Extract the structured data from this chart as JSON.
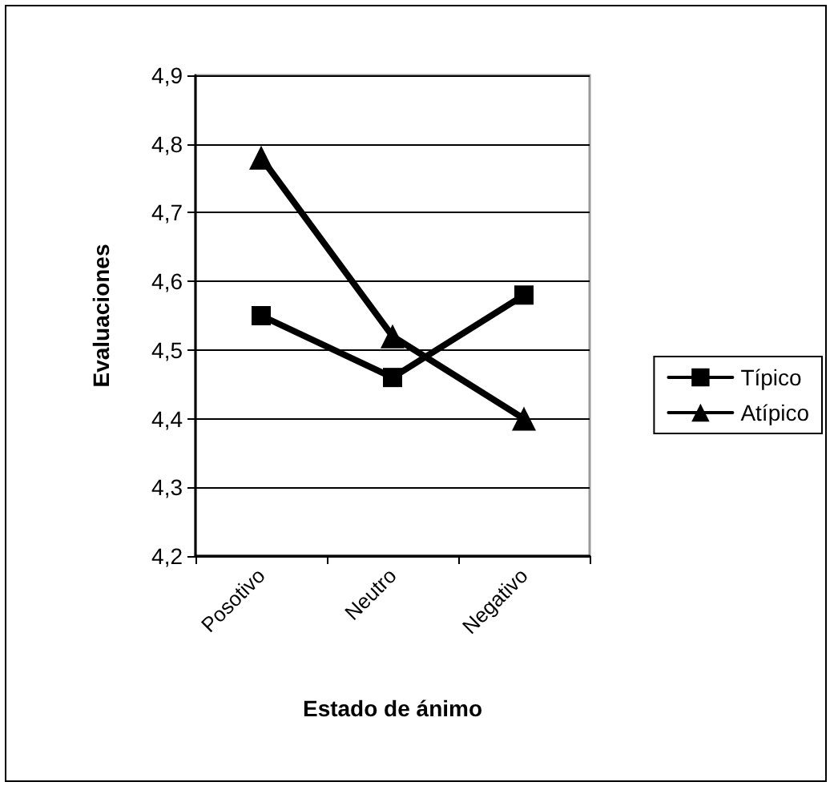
{
  "chart_data": {
    "type": "line",
    "xlabel": "Estado de ánimo",
    "ylabel": "Evaluaciones",
    "categories": [
      "Posotivo",
      "Neutro",
      "Negativo"
    ],
    "series": [
      {
        "name": "Típico",
        "color": "#000000",
        "marker": "square",
        "values": [
          4.55,
          4.46,
          4.58
        ]
      },
      {
        "name": "Atípico",
        "color": "#000000",
        "marker": "triangle",
        "values": [
          4.78,
          4.52,
          4.4
        ]
      }
    ],
    "ylim": [
      4.2,
      4.9
    ],
    "yticks": [
      {
        "value": 4.2,
        "label": "4,2"
      },
      {
        "value": 4.3,
        "label": "4,3"
      },
      {
        "value": 4.4,
        "label": "4,4"
      },
      {
        "value": 4.5,
        "label": "4,5"
      },
      {
        "value": 4.6,
        "label": "4,6"
      },
      {
        "value": 4.7,
        "label": "4,7"
      },
      {
        "value": 4.8,
        "label": "4,8"
      },
      {
        "value": 4.9,
        "label": "4,9"
      }
    ],
    "grid": "y",
    "legend": "right",
    "line_style": "solid"
  }
}
